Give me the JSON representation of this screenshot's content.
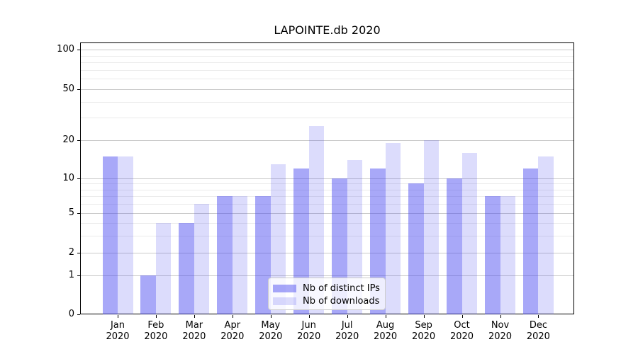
{
  "page": {
    "background": "#ffffff"
  },
  "chart_data": {
    "type": "bar",
    "title": "LAPOINTE.db 2020",
    "categories": [
      "Jan 2020",
      "Feb 2020",
      "Mar 2020",
      "Apr 2020",
      "May 2020",
      "Jun 2020",
      "Jul 2020",
      "Aug 2020",
      "Sep 2020",
      "Oct 2020",
      "Nov 2020",
      "Dec 2020"
    ],
    "series": [
      {
        "name": "Nb of distinct IPs",
        "color": "rgba(70,70,240,0.47)",
        "values": [
          15,
          1,
          4,
          7,
          7,
          12,
          10,
          12,
          9,
          10,
          7,
          12
        ]
      },
      {
        "name": "Nb of downloads",
        "color": "rgba(70,70,240,0.19)",
        "values": [
          15,
          4,
          6,
          7,
          13,
          26,
          14,
          19,
          20,
          16,
          7,
          15
        ]
      }
    ],
    "xlabel": "",
    "ylabel": "",
    "yscale": "log-like log10(1+x), linear segment 0 to 1",
    "ylim": [
      0,
      114
    ],
    "yticks": [
      0,
      1,
      2,
      5,
      10,
      20,
      50,
      100
    ],
    "minor_yticks": [
      3,
      4,
      6,
      7,
      8,
      9,
      30,
      40,
      60,
      70,
      80,
      90
    ],
    "grid": "horizontal, major and minor",
    "legend_position": "lower center"
  },
  "colors": {
    "major_gridline": "#c9c9c9",
    "minor_gridline": "#ebebeb",
    "axis": "#000000",
    "text": "#000000",
    "legend_border": "#cccccc",
    "legend_background": "rgba(255,255,255,0.8)"
  }
}
